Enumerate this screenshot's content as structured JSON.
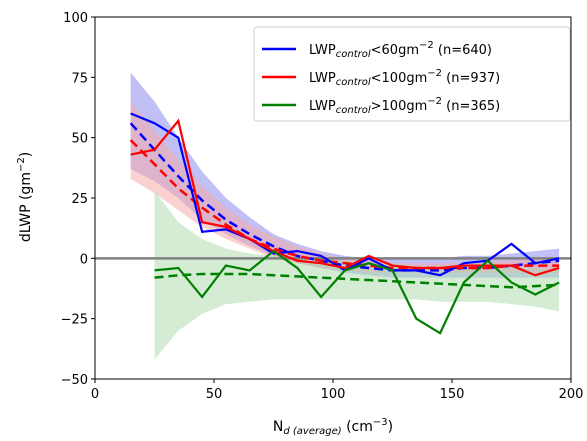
{
  "chart_data": {
    "type": "line",
    "xlabel": {
      "main": "N",
      "sub": "d (average)",
      "unit_pre": " (cm",
      "unit_sup": "−3",
      "unit_post": ")"
    },
    "ylabel": {
      "main": "dLWP (gm",
      "sup": "−2",
      "post": ")"
    },
    "xlim": [
      0,
      200
    ],
    "ylim": [
      -50,
      100
    ],
    "xticks": [
      0,
      50,
      100,
      150,
      200
    ],
    "yticks": [
      -50,
      -25,
      0,
      25,
      50,
      75,
      100
    ],
    "hline": 0,
    "legend_position": "top-right",
    "series": [
      {
        "color": "#0000ff",
        "band_color": "#8c8cf0",
        "legend": {
          "pre": "LWP",
          "sub": "control",
          "post": "<60gm",
          "sup": "−2",
          "tail": " (n=640)"
        },
        "x": [
          15,
          25,
          35,
          45,
          55,
          65,
          75,
          85,
          95,
          105,
          115,
          125,
          135,
          145,
          155,
          165,
          175,
          185,
          195
        ],
        "values": [
          60,
          56,
          50,
          11,
          12,
          8,
          2,
          3,
          1,
          -5,
          0,
          -5,
          -5,
          -7,
          -2,
          -1,
          6,
          -2,
          0
        ],
        "fit": [
          56,
          45,
          34,
          24,
          16,
          10,
          5,
          1,
          -1,
          -3,
          -4,
          -5,
          -5,
          -5,
          -4,
          -4,
          -3,
          -2,
          -1
        ],
        "band_upper": [
          77,
          65,
          50,
          36,
          25,
          17,
          10,
          6,
          3,
          1,
          0,
          0,
          0,
          0,
          1,
          1,
          2,
          3,
          4
        ],
        "band_lower": [
          37,
          32,
          25,
          16,
          10,
          5,
          1,
          -2,
          -4,
          -6,
          -7,
          -8,
          -8,
          -8,
          -8,
          -8,
          -8,
          -8,
          -8
        ]
      },
      {
        "color": "#ff0000",
        "band_color": "#f5aaaa",
        "legend": {
          "pre": "LWP",
          "sub": "control",
          "post": "<100gm",
          "sup": "−2",
          "tail": " (n=937)"
        },
        "x": [
          15,
          25,
          35,
          45,
          55,
          65,
          75,
          85,
          95,
          105,
          115,
          125,
          135,
          145,
          155,
          165,
          175,
          185,
          195
        ],
        "values": [
          43,
          45,
          57,
          15,
          13,
          8,
          3,
          -1,
          -2,
          -4,
          1,
          -3,
          -4,
          -4,
          -3,
          -3,
          -3,
          -7,
          -4
        ],
        "fit": [
          49,
          39,
          29,
          21,
          14,
          8,
          4,
          1,
          -1,
          -2,
          -3,
          -4,
          -4,
          -4,
          -4,
          -4,
          -3,
          -3,
          -3
        ],
        "band_upper": [
          65,
          53,
          41,
          30,
          21,
          14,
          9,
          5,
          2,
          0,
          -1,
          -2,
          -2,
          -2,
          -2,
          -1,
          -1,
          0,
          0
        ],
        "band_lower": [
          33,
          27,
          20,
          13,
          8,
          4,
          0,
          -2,
          -4,
          -5,
          -6,
          -6,
          -6,
          -6,
          -6,
          -6,
          -6,
          -6,
          -6
        ]
      },
      {
        "color": "#008000",
        "band_color": "#b0ddb0",
        "legend": {
          "pre": "LWP",
          "sub": "control",
          "post": ">100gm",
          "sup": "−2",
          "tail": " (n=365)"
        },
        "x": [
          25,
          35,
          45,
          55,
          65,
          75,
          85,
          95,
          105,
          115,
          125,
          135,
          145,
          155,
          165,
          175,
          185,
          195
        ],
        "values": [
          -5,
          -4,
          -16,
          -3,
          -5,
          3,
          -4,
          -16,
          -5,
          -2,
          -5,
          -25,
          -31,
          -10,
          -1,
          -10,
          -15,
          -10
        ],
        "fit": [
          -8,
          -7,
          -6.5,
          -6.5,
          -6.5,
          -7,
          -7.5,
          -8,
          -8.5,
          -9,
          -9.5,
          -10,
          -10.5,
          -11,
          -11.5,
          -12,
          -11.5,
          -11
        ],
        "band_upper": [
          28,
          15,
          8,
          4,
          2,
          1,
          0,
          -1,
          -1,
          -2,
          -2,
          -3,
          -3,
          -3,
          -4,
          -4,
          -4,
          -5
        ],
        "band_lower": [
          -42,
          -30,
          -23,
          -19,
          -18,
          -17,
          -17,
          -17,
          -17,
          -17,
          -17,
          -17,
          -18,
          -18,
          -18,
          -19,
          -20,
          -22
        ]
      }
    ]
  }
}
